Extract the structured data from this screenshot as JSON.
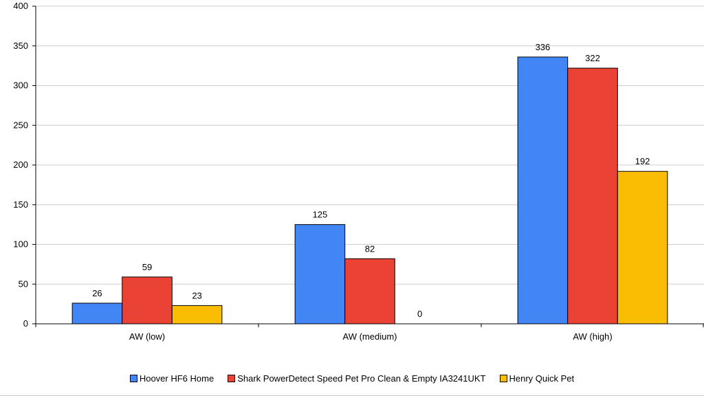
{
  "chart_data": {
    "type": "bar",
    "title": "",
    "xlabel": "",
    "ylabel": "",
    "categories": [
      "AW (low)",
      "AW (medium)",
      "AW (high)"
    ],
    "ylim": [
      0,
      400
    ],
    "yticks": [
      0,
      50,
      100,
      150,
      200,
      250,
      300,
      350,
      400
    ],
    "grid": true,
    "legend_position": "bottom",
    "series": [
      {
        "name": "Hoover HF6 Home",
        "color": "#4285f4",
        "values": [
          26,
          125,
          336
        ]
      },
      {
        "name": "Shark PowerDetect Speed Pet Pro Clean & Empty IA3241UKT",
        "color": "#ea4335",
        "values": [
          59,
          82,
          322
        ]
      },
      {
        "name": "Henry Quick Pet",
        "color": "#fbbc04",
        "values": [
          23,
          0,
          192
        ]
      }
    ]
  }
}
